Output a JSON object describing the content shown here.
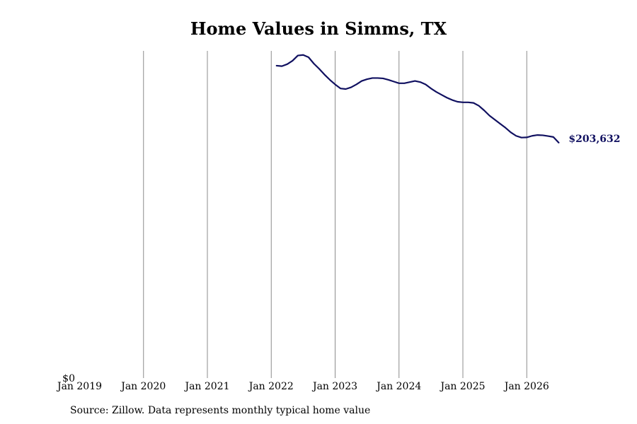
{
  "chart_data": {
    "type": "line",
    "title": "Home Values in Simms, TX",
    "source": "Source: Zillow. Data represents monthly typical home value",
    "line_color": "#101060",
    "grid": "vertical",
    "x_tick_labels": [
      "Jan 2019",
      "Jan 2020",
      "Jan 2021",
      "Jan 2022",
      "Jan 2023",
      "Jan 2024",
      "Jan 2025",
      "Jan 2026"
    ],
    "y_tick_labels": [
      "$0"
    ],
    "end_label": "$203,632",
    "ylim": [
      0,
      283000
    ],
    "series": [
      {
        "x": [
          "2022-02",
          "2022-03",
          "2022-04",
          "2022-05",
          "2022-06",
          "2022-07",
          "2022-08",
          "2022-09",
          "2022-10",
          "2022-11",
          "2022-12",
          "2023-01",
          "2023-02",
          "2023-03",
          "2023-04",
          "2023-05",
          "2023-06",
          "2023-07",
          "2023-08",
          "2023-09",
          "2023-10",
          "2023-11",
          "2023-12",
          "2024-01",
          "2024-02",
          "2024-03",
          "2024-04",
          "2024-05",
          "2024-06",
          "2024-07",
          "2024-08",
          "2024-09",
          "2024-10",
          "2024-11",
          "2024-12",
          "2025-01",
          "2025-02",
          "2025-03",
          "2025-04",
          "2025-05",
          "2025-06",
          "2025-07",
          "2025-08",
          "2025-09",
          "2025-10",
          "2025-11",
          "2025-12",
          "2026-01",
          "2026-02",
          "2026-03",
          "2026-04",
          "2026-05",
          "2026-06",
          "2026-07"
        ],
        "y": [
          270200,
          269800,
          271500,
          274500,
          279000,
          279500,
          277500,
          272000,
          267500,
          262500,
          258000,
          254000,
          250500,
          250000,
          251500,
          254000,
          257000,
          258500,
          259500,
          259500,
          259200,
          258000,
          256500,
          255000,
          255000,
          256000,
          257000,
          256000,
          254000,
          250500,
          247500,
          245000,
          242500,
          240500,
          239000,
          238500,
          238500,
          238000,
          235500,
          231500,
          227000,
          223500,
          220000,
          216500,
          212500,
          209500,
          208000,
          208200,
          209500,
          210200,
          210000,
          209300,
          208500,
          203632
        ]
      }
    ]
  }
}
